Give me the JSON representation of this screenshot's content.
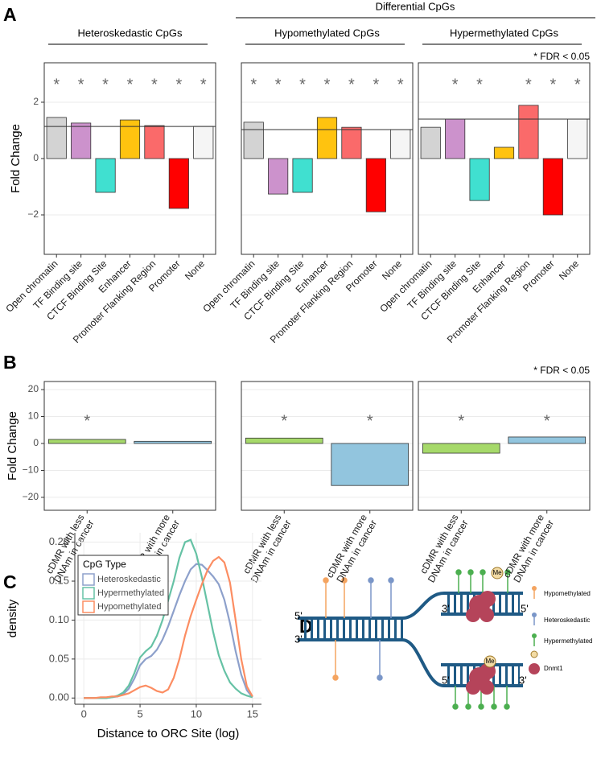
{
  "panels": [
    "A",
    "B",
    "C",
    "D"
  ],
  "group_header": "Differential CpGs",
  "chart_data": [
    {
      "type": "bar",
      "subtitle": "Heteroskedastic CpGs",
      "ylabel": "Fold Change",
      "categories": [
        "Open chromatin",
        "TF Binding site",
        "CTCF Binding Site",
        "Enhancer",
        "Promoter Flanking Region",
        "Promoter",
        "None"
      ],
      "values": [
        1.46,
        1.26,
        -1.2,
        1.37,
        1.17,
        -1.77,
        1.14
      ],
      "colors": [
        "#d3d3d3",
        "#cc92cc",
        "#40e0d0",
        "#ffc30f",
        "#fa6a6a",
        "#ff0000",
        "#f5f5f5"
      ],
      "significance": [
        "*",
        "*",
        "*",
        "*",
        "*",
        "*",
        "*"
      ],
      "reference_line": 1.14,
      "ylim": [
        -3.4,
        3.4
      ],
      "yticks": [
        {
          "value": -2,
          "label": "−2"
        },
        0,
        2
      ],
      "tick_labels": true,
      "grid": true
    },
    {
      "type": "bar",
      "subtitle": "Hypomethylated CpGs",
      "categories": [
        "Open chromatin",
        "TF Binding site",
        "CTCF Binding Site",
        "Enhancer",
        "Promoter Flanking Region",
        "Promoter",
        "None"
      ],
      "values": [
        1.29,
        -1.26,
        -1.2,
        1.46,
        1.11,
        -1.89,
        1.03
      ],
      "colors": [
        "#d3d3d3",
        "#cc92cc",
        "#40e0d0",
        "#ffc30f",
        "#fa6a6a",
        "#ff0000",
        "#f5f5f5"
      ],
      "significance": [
        "*",
        "*",
        "*",
        "*",
        "*",
        "*",
        "*"
      ],
      "reference_line": 1.03,
      "ylim": [
        -3.4,
        3.4
      ],
      "yticks": [
        {
          "value": -2,
          "label": "−2"
        },
        0,
        2
      ],
      "tick_labels": false,
      "grid": true
    },
    {
      "type": "bar",
      "subtitle": "Hypermethylated CpGs",
      "annotation": "* FDR < 0.05",
      "categories": [
        "Open chromatin",
        "TF Binding site",
        "CTCF Binding Site",
        "Enhancer",
        "Promoter Flanking Region",
        "Promoter",
        "None"
      ],
      "values": [
        1.11,
        1.4,
        -1.49,
        0.4,
        1.89,
        -2.0,
        1.4
      ],
      "colors": [
        "#d3d3d3",
        "#cc92cc",
        "#40e0d0",
        "#ffc30f",
        "#fa6a6a",
        "#ff0000",
        "#f5f5f5"
      ],
      "significance": [
        null,
        "*",
        "*",
        null,
        "*",
        "*",
        "*"
      ],
      "reference_line": 1.4,
      "ylim": [
        -3.4,
        3.4
      ],
      "yticks": [
        {
          "value": -2,
          "label": "−2"
        },
        0,
        2
      ],
      "tick_labels": false,
      "grid": true
    },
    {
      "type": "bar",
      "ylabel": "Fold Change",
      "categories": [
        [
          "cDMR with less",
          "DNAm in cancer"
        ],
        [
          "cDMR with more",
          "DNAm in cancer"
        ]
      ],
      "values": [
        1.5,
        0.8
      ],
      "colors": [
        "#a6d96a",
        "#92c5de"
      ],
      "significance": [
        "*",
        null
      ],
      "ylim": [
        -24.8,
        23
      ],
      "yticks": [
        {
          "value": -20,
          "label": "−20"
        },
        {
          "value": -10,
          "label": "−10"
        },
        0,
        10,
        20
      ],
      "tick_labels": true,
      "grid": true
    },
    {
      "type": "bar",
      "categories": [
        [
          "cDMR with less",
          "DNAm in cancer"
        ],
        [
          "cDMR with more",
          "DNAm in cancer"
        ]
      ],
      "values": [
        2.0,
        -15.6
      ],
      "colors": [
        "#a6d96a",
        "#92c5de"
      ],
      "significance": [
        "*",
        "*"
      ],
      "ylim": [
        -24.8,
        23
      ],
      "yticks": [
        {
          "value": -20,
          "label": "−20"
        },
        {
          "value": -10,
          "label": "−10"
        },
        0,
        10,
        20
      ],
      "tick_labels": false,
      "grid": true
    },
    {
      "type": "bar",
      "annotation": "* FDR < 0.05",
      "categories": [
        [
          "cDMR with less",
          "DNAm in cancer"
        ],
        [
          "cDMR with more",
          "DNAm in cancer"
        ]
      ],
      "values": [
        -3.6,
        2.4
      ],
      "colors": [
        "#a6d96a",
        "#92c5de"
      ],
      "significance": [
        "*",
        "*"
      ],
      "ylim": [
        -24.8,
        23
      ],
      "yticks": [
        {
          "value": -20,
          "label": "−20"
        },
        {
          "value": -10,
          "label": "−10"
        },
        0,
        10,
        20
      ],
      "tick_labels": false,
      "grid": true
    },
    {
      "type": "line",
      "xlabel": "Distance to ORC Site (log)",
      "ylabel": "density",
      "legend_title": "CpG Type",
      "legend": "top-left",
      "x": [
        0,
        0.5,
        1,
        1.5,
        2,
        2.5,
        3,
        3.5,
        4,
        4.5,
        5,
        5.5,
        6,
        6.5,
        7,
        7.5,
        8,
        8.5,
        9,
        9.5,
        10,
        10.5,
        11,
        11.5,
        12,
        12.5,
        13,
        13.5,
        14,
        14.5,
        15
      ],
      "series": [
        {
          "name": "Heteroskedastic",
          "color": "#8da0cb",
          "values": [
            0,
            0,
            0,
            0,
            0,
            0.001,
            0.002,
            0.005,
            0.012,
            0.025,
            0.042,
            0.05,
            0.054,
            0.062,
            0.075,
            0.092,
            0.112,
            0.132,
            0.15,
            0.165,
            0.172,
            0.171,
            0.164,
            0.156,
            0.146,
            0.126,
            0.096,
            0.06,
            0.03,
            0.01,
            0.001
          ]
        },
        {
          "name": "Hypermethylated",
          "color": "#66c2a5",
          "values": [
            0,
            0,
            0,
            0,
            0,
            0.001,
            0.003,
            0.007,
            0.016,
            0.032,
            0.052,
            0.06,
            0.066,
            0.08,
            0.1,
            0.125,
            0.15,
            0.18,
            0.2,
            0.203,
            0.185,
            0.155,
            0.12,
            0.085,
            0.055,
            0.035,
            0.02,
            0.012,
            0.006,
            0.003,
            0.001
          ]
        },
        {
          "name": "Hypomethylated",
          "color": "#fc8d62",
          "values": [
            0,
            0,
            0,
            0.001,
            0.001,
            0.002,
            0.002,
            0.004,
            0.006,
            0.01,
            0.014,
            0.016,
            0.013,
            0.009,
            0.007,
            0.011,
            0.026,
            0.05,
            0.08,
            0.105,
            0.126,
            0.146,
            0.164,
            0.176,
            0.181,
            0.174,
            0.148,
            0.1,
            0.05,
            0.015,
            0.002
          ]
        }
      ],
      "xlim": [
        -0.8,
        15.8
      ],
      "xticks": [
        0,
        5,
        10,
        15
      ],
      "ylim": [
        -0.008,
        0.212
      ],
      "yticks": [
        {
          "value": 0,
          "label": "0.00"
        },
        {
          "value": 0.05,
          "label": "0.05"
        },
        {
          "value": 0.1,
          "label": "0.10"
        },
        {
          "value": 0.15,
          "label": "0.15"
        },
        {
          "value": 0.2,
          "label": "0.20"
        }
      ],
      "grid": true
    }
  ],
  "diagram": {
    "strand_labels": [
      "5'",
      "3'",
      "3'",
      "5'",
      "5'",
      "3'"
    ],
    "methyl_labels": [
      "Me",
      "Me"
    ],
    "legend": [
      "Hypomethylated",
      "Heteroskedastic",
      "Hypermethylated",
      "Dnmt1"
    ]
  }
}
